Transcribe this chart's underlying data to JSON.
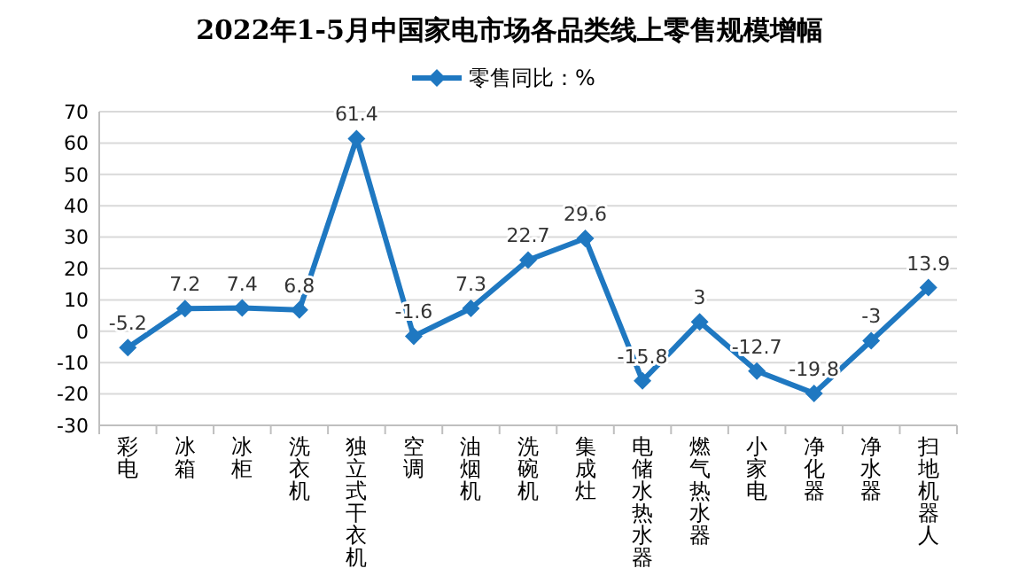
{
  "chart_data": {
    "type": "line",
    "title": "2022年1-5月中国家电市场各品类线上零售规模增幅",
    "categories": [
      "彩电",
      "冰箱",
      "冰柜",
      "洗衣机",
      "独立式干衣机",
      "空调",
      "油烟机",
      "洗碗机",
      "集成灶",
      "电储水热水器",
      "燃气热水器",
      "小家电",
      "净化器",
      "净水器",
      "扫地机器人"
    ],
    "series": [
      {
        "name": "零售同比：%",
        "color": "#1f78c1",
        "values": [
          -5.2,
          7.2,
          7.4,
          6.8,
          61.4,
          -1.6,
          7.3,
          22.7,
          29.6,
          -15.8,
          3,
          -12.7,
          -19.8,
          -3,
          13.9
        ]
      }
    ],
    "ylim": [
      -30,
      70
    ],
    "yticks": [
      -30,
      -20,
      -10,
      0,
      10,
      20,
      30,
      40,
      50,
      60,
      70
    ],
    "grid": "y",
    "legend": "top",
    "marker": "diamond",
    "line_style": "solid",
    "data_labels": true
  }
}
